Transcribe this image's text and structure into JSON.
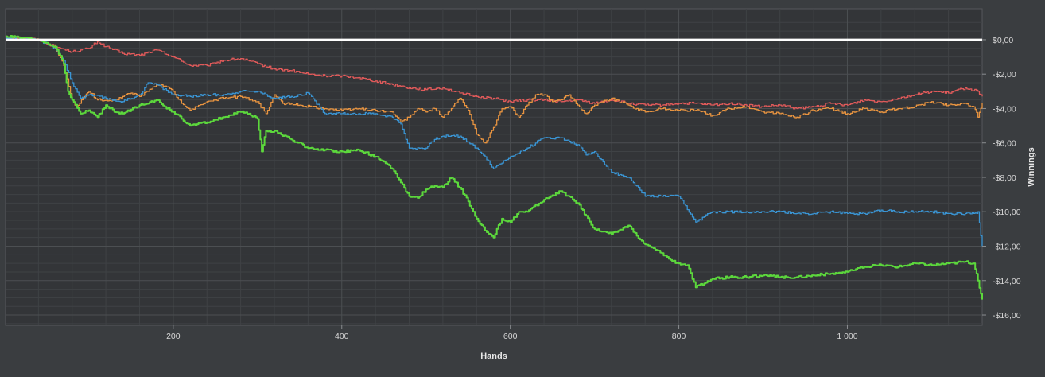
{
  "chart_data": {
    "type": "line",
    "xlabel": "Hands",
    "ylabel": "Winnings",
    "xlim": [
      1,
      1160
    ],
    "ylim": [
      -16.6,
      1.8
    ],
    "x_ticks": [
      {
        "value": 200,
        "label": "200"
      },
      {
        "value": 400,
        "label": "400"
      },
      {
        "value": 600,
        "label": "600"
      },
      {
        "value": 800,
        "label": "800"
      },
      {
        "value": 1000,
        "label": "1 000"
      }
    ],
    "y_ticks": [
      {
        "value": 0,
        "label": "$0,00"
      },
      {
        "value": -2,
        "label": "-$2,00"
      },
      {
        "value": -4,
        "label": "-$4,00"
      },
      {
        "value": -6,
        "label": "-$6,00"
      },
      {
        "value": -8,
        "label": "-$8,00"
      },
      {
        "value": -10,
        "label": "-$10,00"
      },
      {
        "value": -12,
        "label": "-$12,00"
      },
      {
        "value": -14,
        "label": "-$14,00"
      },
      {
        "value": -16,
        "label": "-$16,00"
      }
    ],
    "grid": true,
    "background_color": "#3a3d40",
    "zero_line_color": "#ffffff",
    "series": [
      {
        "color": "#e05a5a",
        "stroke": 1.3,
        "x": [
          1,
          20,
          40,
          60,
          80,
          100,
          110,
          120,
          140,
          160,
          180,
          200,
          220,
          240,
          260,
          280,
          300,
          320,
          340,
          360,
          380,
          400,
          420,
          440,
          460,
          480,
          500,
          520,
          540,
          560,
          580,
          600,
          620,
          640,
          660,
          680,
          700,
          720,
          740,
          760,
          780,
          800,
          820,
          840,
          860,
          880,
          900,
          920,
          940,
          960,
          980,
          1000,
          1020,
          1040,
          1060,
          1080,
          1100,
          1120,
          1140,
          1155,
          1160
        ],
        "y": [
          0.2,
          0.1,
          0,
          -0.4,
          -0.7,
          -0.5,
          -0.1,
          -0.4,
          -0.8,
          -0.9,
          -0.6,
          -1.0,
          -1.5,
          -1.5,
          -1.2,
          -1.1,
          -1.4,
          -1.7,
          -1.8,
          -2.0,
          -2.1,
          -2.1,
          -2.2,
          -2.4,
          -2.6,
          -2.8,
          -2.9,
          -2.8,
          -3.1,
          -3.3,
          -3.4,
          -3.6,
          -3.5,
          -3.5,
          -3.6,
          -3.5,
          -3.7,
          -3.5,
          -3.7,
          -3.8,
          -3.8,
          -3.7,
          -3.7,
          -3.8,
          -3.7,
          -3.8,
          -3.9,
          -3.8,
          -4.0,
          -3.9,
          -3.7,
          -3.8,
          -3.5,
          -3.6,
          -3.4,
          -3.2,
          -3.0,
          -3.1,
          -2.8,
          -3.0,
          -3.3
        ]
      },
      {
        "color": "#e89440",
        "stroke": 1.3,
        "x": [
          1,
          20,
          40,
          60,
          70,
          80,
          85,
          95,
          100,
          110,
          130,
          140,
          150,
          160,
          170,
          180,
          190,
          200,
          210,
          220,
          240,
          260,
          280,
          300,
          310,
          320,
          330,
          350,
          380,
          400,
          420,
          440,
          460,
          470,
          480,
          490,
          500,
          510,
          520,
          530,
          540,
          550,
          560,
          570,
          580,
          590,
          600,
          610,
          620,
          630,
          640,
          650,
          660,
          670,
          680,
          690,
          700,
          720,
          740,
          760,
          780,
          800,
          820,
          840,
          860,
          880,
          900,
          920,
          940,
          960,
          980,
          1000,
          1020,
          1040,
          1060,
          1080,
          1100,
          1120,
          1140,
          1150,
          1155,
          1160
        ],
        "y": [
          0.1,
          0,
          0,
          -0.5,
          -1.5,
          -3.5,
          -3.9,
          -3.3,
          -3.0,
          -3.5,
          -3.5,
          -3.3,
          -3.1,
          -3.3,
          -3.0,
          -2.6,
          -2.7,
          -3.0,
          -3.7,
          -4.1,
          -3.6,
          -3.4,
          -3.3,
          -3.6,
          -4.3,
          -3.2,
          -3.7,
          -3.8,
          -4.0,
          -4.1,
          -4.0,
          -4.1,
          -4.2,
          -4.8,
          -4.5,
          -4.0,
          -4.2,
          -4.0,
          -4.5,
          -4.0,
          -3.4,
          -4.1,
          -5.5,
          -6.0,
          -5.1,
          -4.0,
          -3.9,
          -4.5,
          -3.8,
          -3.2,
          -3.2,
          -3.6,
          -3.5,
          -3.2,
          -3.8,
          -4.3,
          -3.8,
          -3.4,
          -3.8,
          -4.2,
          -4.0,
          -4.1,
          -4.1,
          -4.4,
          -4.0,
          -3.9,
          -4.2,
          -4.3,
          -4.5,
          -4.1,
          -4.0,
          -4.3,
          -4.0,
          -4.2,
          -4.0,
          -3.9,
          -3.6,
          -3.8,
          -3.7,
          -3.9,
          -4.5,
          -3.7
        ]
      },
      {
        "color": "#3a95d4",
        "stroke": 1.3,
        "x": [
          1,
          20,
          40,
          60,
          70,
          80,
          90,
          100,
          120,
          140,
          160,
          170,
          180,
          200,
          220,
          240,
          260,
          280,
          300,
          320,
          340,
          360,
          380,
          400,
          420,
          440,
          460,
          470,
          480,
          500,
          510,
          520,
          540,
          560,
          570,
          580,
          600,
          620,
          640,
          660,
          680,
          690,
          700,
          710,
          720,
          740,
          750,
          760,
          780,
          800,
          820,
          840,
          860,
          880,
          900,
          920,
          940,
          960,
          980,
          1000,
          1020,
          1040,
          1060,
          1080,
          1100,
          1120,
          1140,
          1150,
          1155,
          1160
        ],
        "y": [
          0.1,
          0,
          0,
          -0.5,
          -1.2,
          -2.5,
          -3.4,
          -3.2,
          -3.4,
          -3.6,
          -3.2,
          -2.5,
          -2.6,
          -3.2,
          -3.3,
          -3.2,
          -3.2,
          -3.0,
          -3.0,
          -3.4,
          -3.3,
          -3.1,
          -4.3,
          -4.3,
          -4.3,
          -4.3,
          -4.5,
          -4.9,
          -6.3,
          -6.3,
          -5.8,
          -5.6,
          -5.6,
          -6.3,
          -6.8,
          -7.5,
          -6.8,
          -6.3,
          -5.7,
          -5.7,
          -6.1,
          -6.7,
          -6.5,
          -7.1,
          -7.7,
          -8.0,
          -8.5,
          -9.1,
          -9.1,
          -9.1,
          -10.6,
          -10.0,
          -10.0,
          -10.0,
          -10.0,
          -10.0,
          -10.1,
          -10.1,
          -10.0,
          -10.1,
          -10.1,
          -9.9,
          -10.0,
          -10.0,
          -10.0,
          -10.1,
          -10.1,
          -10.1,
          -10.0,
          -12.0
        ]
      },
      {
        "color": "#5cd83c",
        "stroke": 2.0,
        "x": [
          1,
          20,
          40,
          60,
          70,
          75,
          80,
          90,
          100,
          110,
          120,
          130,
          140,
          160,
          180,
          190,
          200,
          210,
          220,
          240,
          260,
          280,
          290,
          300,
          305,
          310,
          320,
          340,
          360,
          380,
          400,
          420,
          440,
          460,
          470,
          480,
          490,
          500,
          510,
          520,
          530,
          540,
          550,
          560,
          570,
          580,
          590,
          600,
          610,
          620,
          640,
          660,
          680,
          700,
          720,
          740,
          750,
          760,
          780,
          790,
          800,
          810,
          820,
          840,
          860,
          880,
          900,
          920,
          940,
          960,
          980,
          1000,
          1020,
          1040,
          1060,
          1080,
          1100,
          1120,
          1140,
          1150,
          1155,
          1160
        ],
        "y": [
          0.2,
          0.1,
          0,
          -0.4,
          -1.4,
          -3.0,
          -3.5,
          -4.3,
          -4.1,
          -4.5,
          -3.8,
          -4.2,
          -4.3,
          -3.8,
          -3.5,
          -3.9,
          -4.2,
          -4.6,
          -5.0,
          -4.8,
          -4.5,
          -4.2,
          -4.3,
          -4.6,
          -6.5,
          -5.3,
          -5.3,
          -5.8,
          -6.3,
          -6.4,
          -6.5,
          -6.4,
          -6.8,
          -7.5,
          -8.3,
          -9.1,
          -9.2,
          -8.7,
          -8.5,
          -8.6,
          -8.0,
          -8.6,
          -9.4,
          -10.4,
          -11.1,
          -11.5,
          -10.4,
          -10.6,
          -10.0,
          -10.0,
          -9.3,
          -8.8,
          -9.5,
          -11.0,
          -11.3,
          -10.8,
          -11.4,
          -11.9,
          -12.4,
          -12.8,
          -13.0,
          -13.1,
          -14.4,
          -13.9,
          -13.8,
          -13.8,
          -13.7,
          -13.8,
          -13.8,
          -13.7,
          -13.6,
          -13.5,
          -13.2,
          -13.1,
          -13.2,
          -13.0,
          -13.1,
          -13.0,
          -12.9,
          -13.0,
          -14.0,
          -15.1
        ]
      }
    ]
  }
}
